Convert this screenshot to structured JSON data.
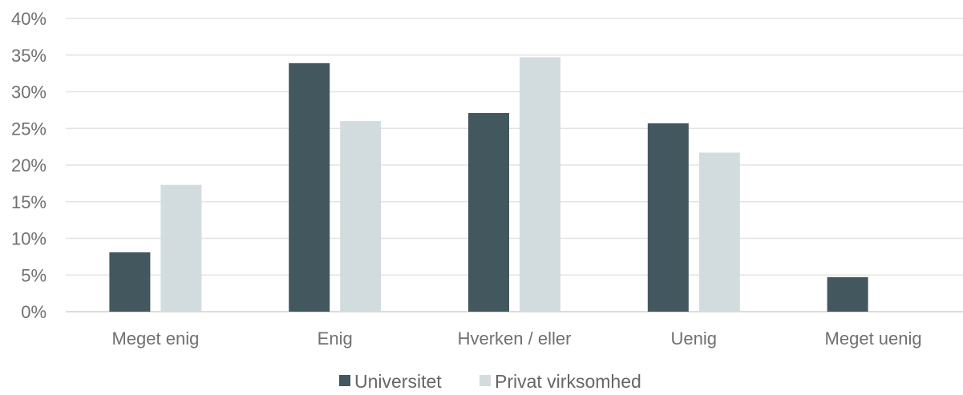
{
  "chart_data": {
    "type": "bar",
    "categories": [
      "Meget enig",
      "Enig",
      "Hverken / eller",
      "Uenig",
      "Meget uenig"
    ],
    "series": [
      {
        "name": "Universitet",
        "values": [
          8.1,
          33.9,
          27.1,
          25.7,
          4.7
        ],
        "color": "#43575e"
      },
      {
        "name": "Privat virksomhed",
        "values": [
          17.3,
          26.0,
          34.7,
          21.7,
          0
        ],
        "color": "#d2dcdf"
      }
    ],
    "yticks": [
      "0%",
      "5%",
      "10%",
      "15%",
      "20%",
      "25%",
      "30%",
      "35%",
      "40%"
    ],
    "ylim": [
      0,
      40
    ],
    "grid": true,
    "legend_position": "bottom-center"
  }
}
